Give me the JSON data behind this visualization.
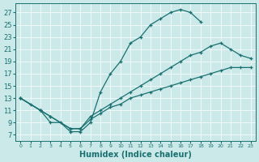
{
  "xlabel": "Humidex (Indice chaleur)",
  "xlim": [
    -0.5,
    23.5
  ],
  "ylim": [
    6.0,
    28.5
  ],
  "xticks": [
    0,
    1,
    2,
    3,
    4,
    5,
    6,
    7,
    8,
    9,
    10,
    11,
    12,
    13,
    14,
    15,
    16,
    17,
    18,
    19,
    20,
    21,
    22,
    23
  ],
  "yticks": [
    7,
    9,
    11,
    13,
    15,
    17,
    19,
    21,
    23,
    25,
    27
  ],
  "bg_color": "#cce9e9",
  "line_color": "#1a7070",
  "curve1_x": [
    0,
    1,
    2,
    3,
    4,
    5,
    6,
    7,
    8,
    9,
    10,
    11,
    12,
    13,
    14,
    15,
    16,
    17,
    18
  ],
  "curve1_y": [
    13,
    12,
    11,
    9,
    9,
    7.5,
    7.5,
    9,
    14,
    17,
    19,
    22,
    23,
    25,
    26,
    27,
    27.5,
    27,
    25.5
  ],
  "curve2_x": [
    0,
    2,
    3,
    5,
    6,
    7,
    8,
    9,
    10,
    11,
    12,
    13,
    14,
    15,
    16,
    17,
    18,
    19,
    20,
    21,
    22,
    23
  ],
  "curve2_y": [
    13,
    11,
    10,
    8,
    8,
    10,
    11,
    12,
    13,
    14,
    15,
    16,
    17,
    18,
    19,
    20,
    20.5,
    21.5,
    22,
    21,
    20,
    19.5
  ],
  "curve3_x": [
    0,
    2,
    3,
    5,
    6,
    7,
    8,
    9,
    10,
    11,
    12,
    13,
    14,
    15,
    16,
    17,
    18,
    19,
    20,
    21,
    22,
    23
  ],
  "curve3_y": [
    13,
    11,
    10,
    8,
    8,
    9.5,
    10.5,
    11.5,
    12,
    13,
    13.5,
    14,
    14.5,
    15,
    15.5,
    16,
    16.5,
    17,
    17.5,
    18,
    18,
    18
  ]
}
